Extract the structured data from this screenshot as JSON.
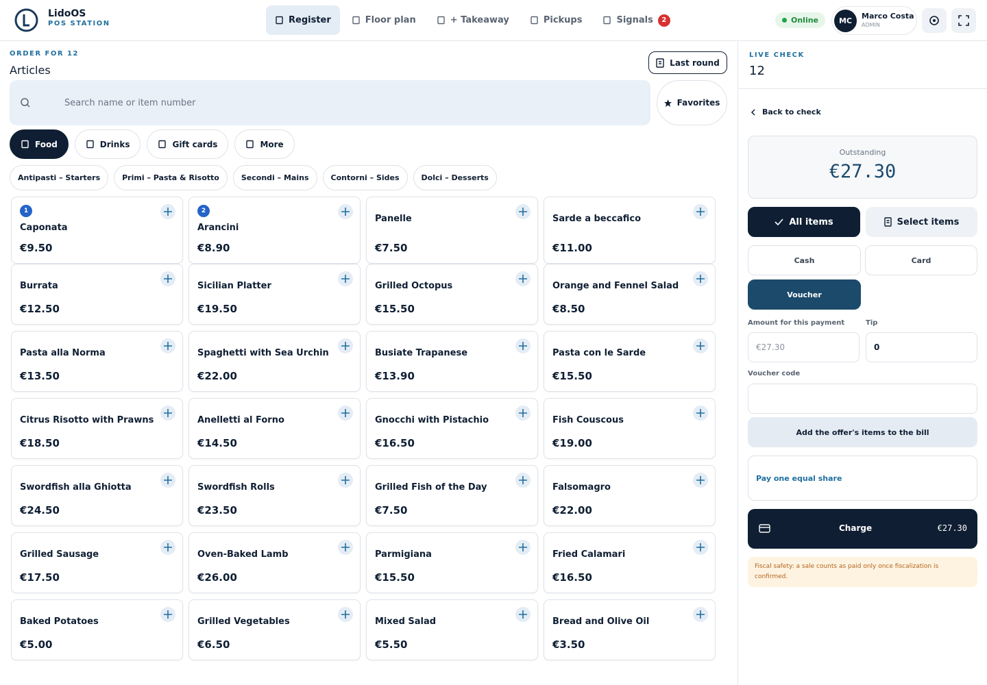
{
  "header": {
    "brand": "LidoOS",
    "brand_sub": "POS STATION",
    "nav": [
      "Register",
      "Floor plan",
      "+ Takeaway",
      "Pickups",
      "Signals"
    ],
    "signals_count": "2",
    "status": "Online",
    "user_initials": "MC",
    "user_name": "Marco Costa",
    "user_role": "ADMIN"
  },
  "order": {
    "label": "ORDER FOR 12",
    "title": "Articles",
    "last_round": "Last round",
    "search_placeholder": "Search name or item number",
    "favorites": "Favorites",
    "tabs": [
      "Food",
      "Drinks",
      "Gift cards",
      "More"
    ],
    "subcategories": [
      "Antipasti – Starters",
      "Primi – Pasta & Risotto",
      "Secondi – Mains",
      "Contorni – Sides",
      "Dolci – Desserts"
    ],
    "items": [
      {
        "badge": "1",
        "name": "Caponata",
        "price": "€9.50"
      },
      {
        "badge": "2",
        "name": "Arancini",
        "price": "€8.90"
      },
      {
        "name": "Panelle",
        "price": "€7.50"
      },
      {
        "name": "Sarde a beccafico",
        "price": "€11.00"
      },
      {
        "name": "Burrata",
        "price": "€12.50"
      },
      {
        "name": "Sicilian Platter",
        "price": "€19.50"
      },
      {
        "name": "Grilled Octopus",
        "price": "€15.50"
      },
      {
        "name": "Orange and Fennel Salad",
        "price": "€8.50"
      },
      {
        "name": "Pasta alla Norma",
        "price": "€13.50"
      },
      {
        "name": "Spaghetti with Sea Urchin",
        "price": "€22.00"
      },
      {
        "name": "Busiate Trapanese",
        "price": "€13.90"
      },
      {
        "name": "Pasta con le Sarde",
        "price": "€15.50"
      },
      {
        "name": "Citrus Risotto with Prawns",
        "price": "€18.50"
      },
      {
        "name": "Anelletti al Forno",
        "price": "€14.50"
      },
      {
        "name": "Gnocchi with Pistachio",
        "price": "€16.50"
      },
      {
        "name": "Fish Couscous",
        "price": "€19.00"
      },
      {
        "name": "Swordfish alla Ghiotta",
        "price": "€24.50"
      },
      {
        "name": "Swordfish Rolls",
        "price": "€23.50"
      },
      {
        "name": "Grilled Fish of the Day",
        "price": "€7.50"
      },
      {
        "name": "Falsomagro",
        "price": "€22.00"
      },
      {
        "name": "Grilled Sausage",
        "price": "€17.50"
      },
      {
        "name": "Oven-Baked Lamb",
        "price": "€26.00"
      },
      {
        "name": "Parmigiana",
        "price": "€15.50"
      },
      {
        "name": "Fried Calamari",
        "price": "€16.50"
      },
      {
        "name": "Baked Potatoes",
        "price": "€5.00"
      },
      {
        "name": "Grilled Vegetables",
        "price": "€6.50"
      },
      {
        "name": "Mixed Salad",
        "price": "€5.50"
      },
      {
        "name": "Bread and Olive Oil",
        "price": "€3.50"
      }
    ]
  },
  "check": {
    "label": "LIVE CHECK",
    "number": "12",
    "back": "Back to check",
    "outstanding_label": "Outstanding",
    "outstanding": "€27.30",
    "all_items": "All items",
    "select_items": "Select items",
    "methods": [
      "Cash",
      "Card",
      "Voucher"
    ],
    "amount_label": "Amount for this payment",
    "tip_label": "Tip",
    "amount_placeholder": "€27.30",
    "tip": "0",
    "voucher_label": "Voucher code",
    "add_offer": "Add the offer's items to the bill",
    "pay_share": "Pay one equal share",
    "charge": "Charge",
    "charge_amount": "€27.30",
    "fiscal_note": "Fiscal safety: a sale counts as paid only once fiscalization is confirmed."
  }
}
